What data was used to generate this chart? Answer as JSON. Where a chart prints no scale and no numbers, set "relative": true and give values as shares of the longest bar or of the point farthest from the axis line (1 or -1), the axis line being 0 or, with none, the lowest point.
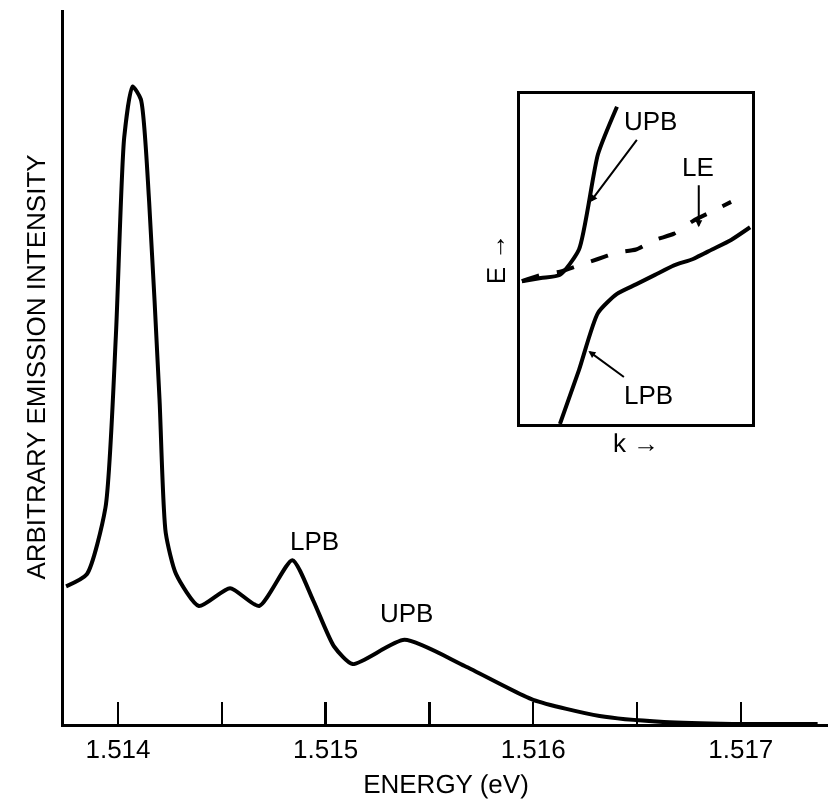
{
  "chart_data": [
    {
      "type": "line",
      "xlabel": "ENERGY (eV)",
      "ylabel": "ARBITRARY EMISSION INTENSITY",
      "relative": true,
      "x": [
        1.51375,
        1.51385,
        1.51394,
        1.51399,
        1.51403,
        1.51407,
        1.51411,
        1.51415,
        1.5142,
        1.51423,
        1.51428,
        1.51439,
        1.51454,
        1.51468,
        1.51484,
        1.51494,
        1.51504,
        1.51513,
        1.51538,
        1.51567,
        1.516,
        1.51632,
        1.51663,
        1.51696,
        1.51737
      ],
      "series": [
        {
          "color": "#000000",
          "values": [
            0.216,
            0.235,
            0.34,
            0.61,
            0.92,
            1.0,
            0.98,
            0.82,
            0.51,
            0.3,
            0.235,
            0.185,
            0.213,
            0.185,
            0.257,
            0.194,
            0.122,
            0.094,
            0.132,
            0.091,
            0.038,
            0.0125,
            0.003,
            0,
            0
          ]
        }
      ],
      "xlim": [
        1.51374,
        1.51742
      ],
      "xticks": [
        1.514,
        {
          "value": 1.5145,
          "label": null
        },
        1.515,
        {
          "value": 1.5155,
          "label": null
        },
        1.516,
        {
          "value": 1.5165,
          "label": null
        },
        1.517
      ],
      "annotations": [
        "LPB",
        "UPB"
      ],
      "grid": false,
      "marker": "none",
      "line_style": "solid"
    },
    {
      "type": "line",
      "xlabel": "k →",
      "ylabel": "E →",
      "relative": true,
      "tick_labels": false,
      "categories": [
        null,
        null,
        null,
        null,
        null,
        null,
        null,
        null,
        null,
        null,
        null,
        null,
        null
      ],
      "series": [
        {
          "color": "#000000",
          "line_style": "solid",
          "values": [
            0.45,
            0.46,
            0.47,
            0.55,
            0.85,
            1.0,
            null,
            null,
            null,
            null,
            null,
            null,
            null
          ]
        },
        {
          "color": "#000000",
          "line_style": "dashed",
          "values": [
            0.45,
            0.47,
            0.48,
            0.5,
            0.52,
            0.54,
            0.55,
            0.58,
            0.6,
            0.64,
            0.67,
            0.7,
            null
          ]
        },
        {
          "color": "#000000",
          "line_style": "solid",
          "values": [
            null,
            null,
            0,
            0.17,
            0.35,
            0.41,
            0.44,
            0.47,
            0.5,
            0.52,
            0.55,
            0.58,
            0.62
          ]
        }
      ],
      "annotations": [
        "UPB",
        "LE",
        "LPB"
      ],
      "grid": false,
      "marker": "none"
    }
  ]
}
